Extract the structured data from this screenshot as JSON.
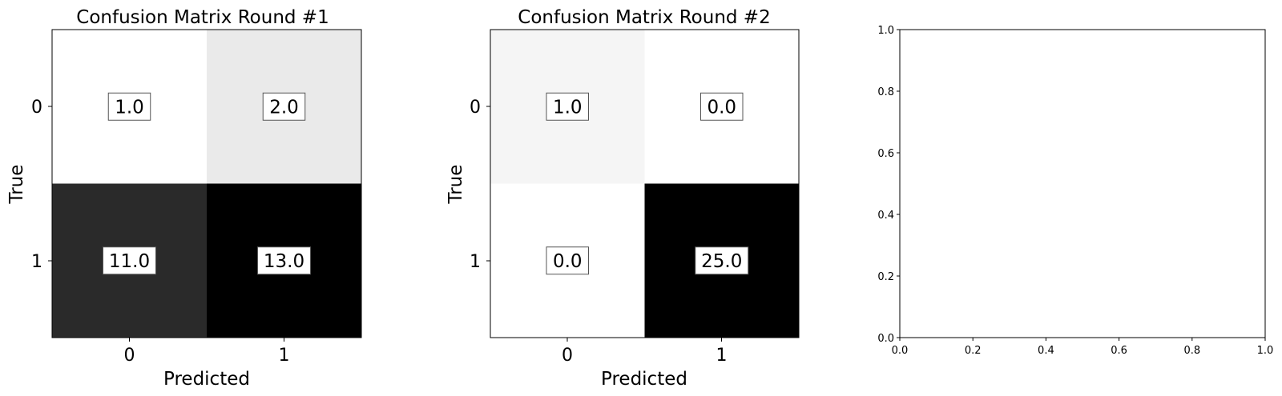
{
  "chart_data": [
    {
      "type": "heatmap",
      "title": "Confusion Matrix Round #1",
      "xlabel": "Predicted",
      "ylabel": "True",
      "x_tick_labels": [
        "0",
        "1"
      ],
      "y_tick_labels": [
        "0",
        "1"
      ],
      "colormap": "Greys",
      "matrix": [
        [
          1.0,
          2.0
        ],
        [
          11.0,
          13.0
        ]
      ],
      "cell_labels": [
        [
          "1.0",
          "2.0"
        ],
        [
          "11.0",
          "13.0"
        ]
      ]
    },
    {
      "type": "heatmap",
      "title": "Confusion Matrix Round #2",
      "xlabel": "Predicted",
      "ylabel": "True",
      "x_tick_labels": [
        "0",
        "1"
      ],
      "y_tick_labels": [
        "0",
        "1"
      ],
      "colormap": "Greys",
      "matrix": [
        [
          1.0,
          0.0
        ],
        [
          0.0,
          25.0
        ]
      ],
      "cell_labels": [
        [
          "1.0",
          "0.0"
        ],
        [
          "0.0",
          "25.0"
        ]
      ]
    },
    {
      "type": "line",
      "title": "",
      "xlabel": "",
      "ylabel": "",
      "xlim": [
        0.0,
        1.0
      ],
      "ylim": [
        0.0,
        1.0
      ],
      "x_ticks": [
        "0.0",
        "0.2",
        "0.4",
        "0.6",
        "0.8",
        "1.0"
      ],
      "y_ticks": [
        "0.0",
        "0.2",
        "0.4",
        "0.6",
        "0.8",
        "1.0"
      ],
      "series": []
    }
  ]
}
